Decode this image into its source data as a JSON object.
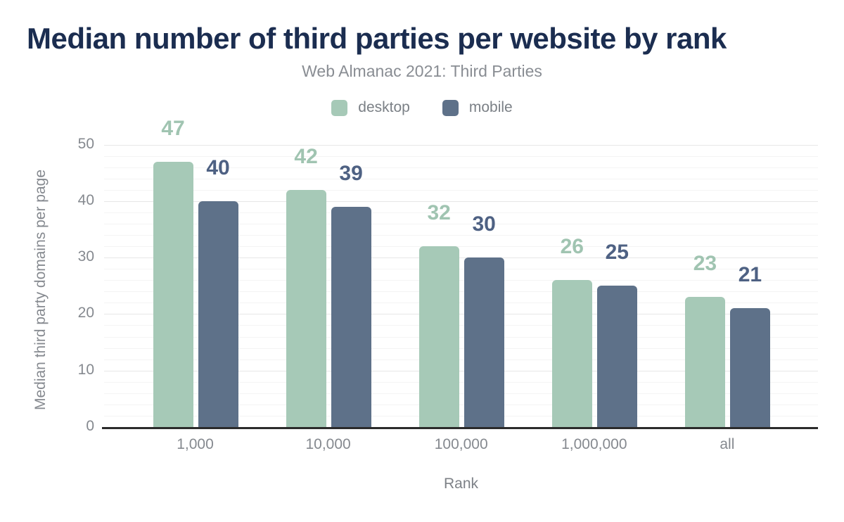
{
  "chart_data": {
    "type": "bar",
    "title": "Median number of third parties per website by rank",
    "subtitle": "Web Almanac 2021: Third Parties",
    "xlabel": "Rank",
    "ylabel": "Median third party domains per page",
    "categories": [
      "1,000",
      "10,000",
      "100,000",
      "1,000,000",
      "all"
    ],
    "series": [
      {
        "name": "desktop",
        "values": [
          47,
          42,
          32,
          26,
          23
        ],
        "color": "#a6c9b7",
        "label_color": "#a0c4b1"
      },
      {
        "name": "mobile",
        "values": [
          40,
          39,
          30,
          25,
          21
        ],
        "color": "#5e7189",
        "label_color": "#4e6183"
      }
    ],
    "y_axis": {
      "ticks": [
        0,
        10,
        20,
        30,
        40,
        50
      ],
      "range": [
        0,
        50
      ],
      "major_step": 10,
      "minor_step": 2
    },
    "legend": {
      "position": "top"
    },
    "grid": true,
    "colors": {
      "title": "#1b2d50",
      "axis_text": "#85898f",
      "axis_line": "#2b2b2b",
      "major_grid": "#e7e7e7",
      "minor_grid": "#f4f4f4"
    }
  }
}
